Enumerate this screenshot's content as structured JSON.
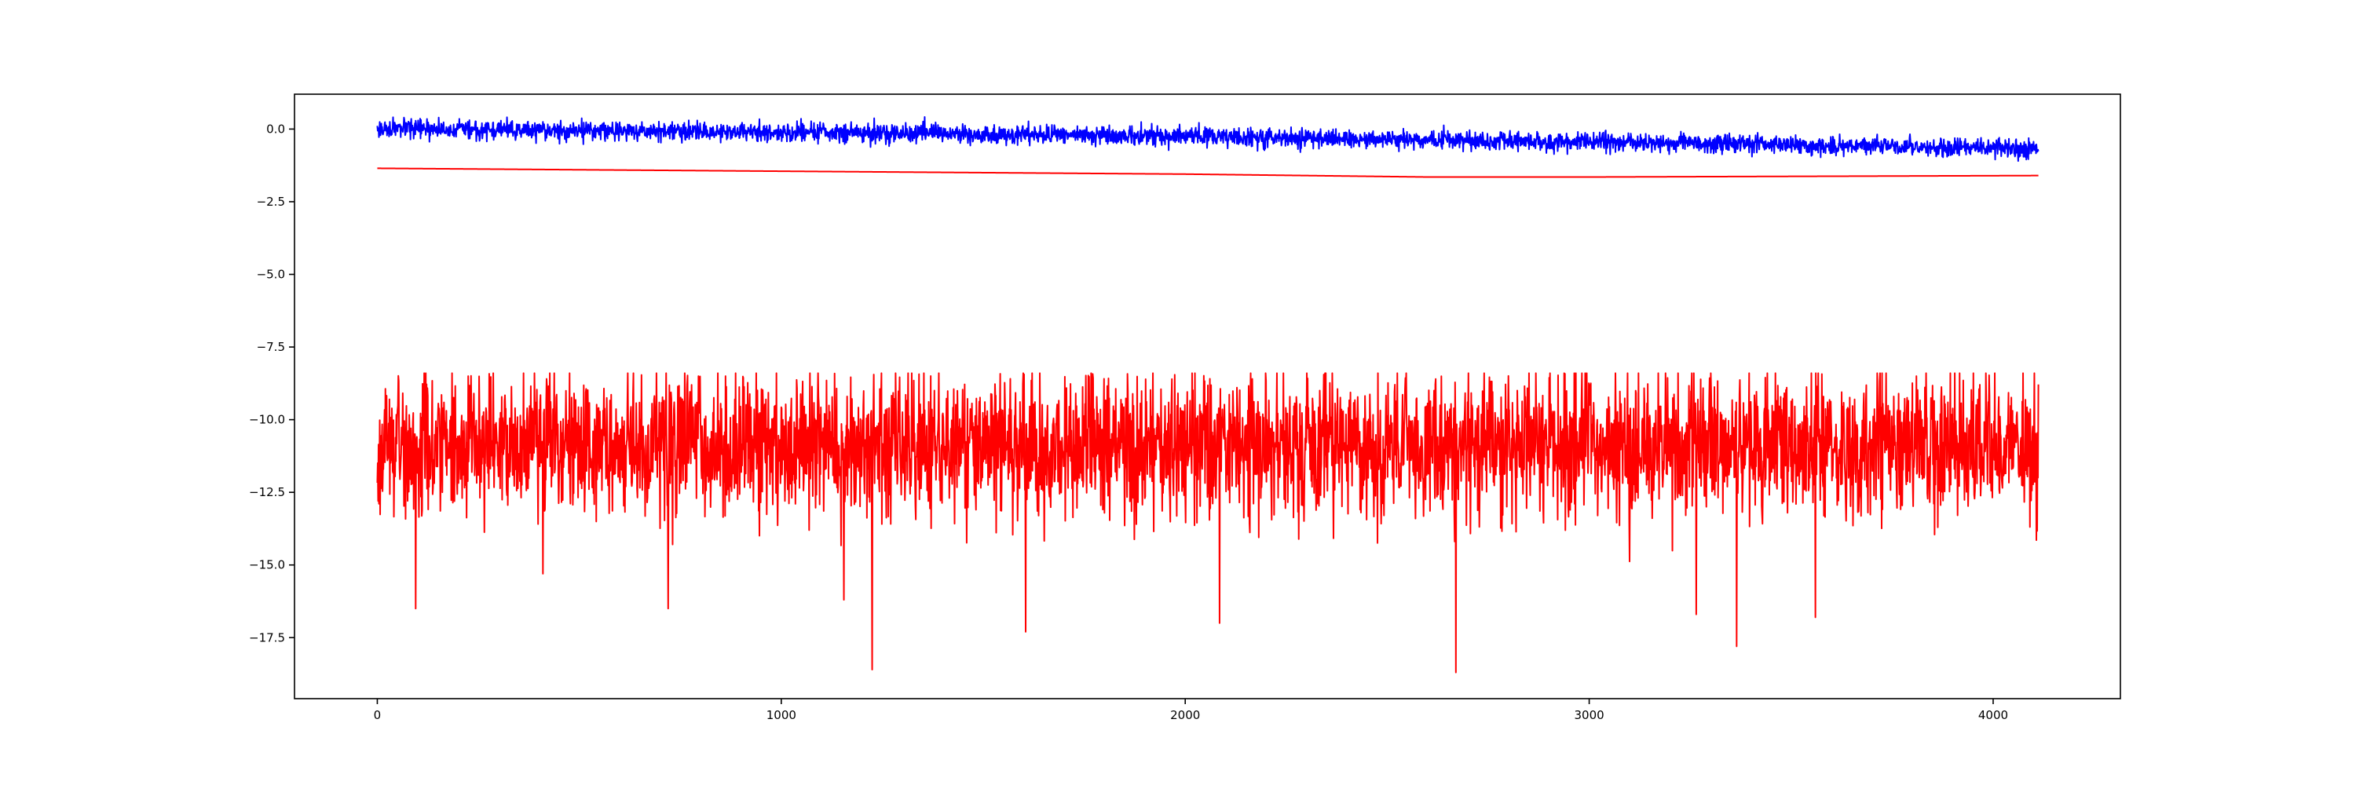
{
  "figure": {
    "background": "#ffffff"
  },
  "chart_data": {
    "type": "line",
    "title": "",
    "xlabel": "",
    "ylabel": "",
    "xlim": [
      -205,
      4315
    ],
    "ylim": [
      -19.6,
      1.2
    ],
    "x_ticks": [
      0,
      1000,
      2000,
      3000,
      4000
    ],
    "x_tick_labels": [
      "0",
      "1000",
      "2000",
      "3000",
      "4000"
    ],
    "y_ticks": [
      0.0,
      -2.5,
      -5.0,
      -7.5,
      -10.0,
      -12.5,
      -15.0,
      -17.5
    ],
    "y_tick_labels": [
      "0.0",
      "−2.5",
      "−5.0",
      "−7.5",
      "−10.0",
      "−12.5",
      "−15.0",
      "−17.5"
    ],
    "grid": false,
    "legend": "none",
    "n_points": 4113,
    "series": [
      {
        "color": "#0000ff",
        "description": "noisy signal drifting downward",
        "anchors": {
          "x": [
            0,
            1000,
            2000,
            3000,
            4000,
            4112
          ],
          "y": [
            0.0,
            -0.1,
            -0.25,
            -0.45,
            -0.65,
            -0.7
          ]
        },
        "noise_amplitude": 0.28,
        "notable_points": []
      },
      {
        "color": "#ff0000",
        "description": "smooth line",
        "anchors": {
          "x": [
            0,
            1000,
            2000,
            2600,
            3000,
            4112
          ],
          "y": [
            -1.35,
            -1.45,
            -1.55,
            -1.65,
            -1.65,
            -1.6
          ]
        },
        "noise_amplitude": 0,
        "notable_points": []
      },
      {
        "color": "#ff0000",
        "description": "noisy signal fluctuating around -10.9",
        "anchors": {
          "x": [
            0,
            4112
          ],
          "y": [
            -10.9,
            -10.9
          ]
        },
        "range": [
          -18.7,
          -8.4
        ],
        "noise_amplitude": 2.2,
        "notable_points": [
          {
            "x": 95,
            "y": -16.5
          },
          {
            "x": 410,
            "y": -15.3
          },
          {
            "x": 720,
            "y": -16.5
          },
          {
            "x": 1155,
            "y": -16.2
          },
          {
            "x": 1225,
            "y": -18.6
          },
          {
            "x": 1605,
            "y": -17.3
          },
          {
            "x": 2085,
            "y": -17.0
          },
          {
            "x": 2670,
            "y": -18.7
          },
          {
            "x": 3265,
            "y": -16.7
          },
          {
            "x": 3365,
            "y": -17.8
          },
          {
            "x": 3560,
            "y": -16.8
          },
          {
            "x": 225,
            "y": -8.5
          },
          {
            "x": 795,
            "y": -8.5
          },
          {
            "x": 2620,
            "y": -8.6
          },
          {
            "x": 2740,
            "y": -8.4
          },
          {
            "x": 3810,
            "y": -8.5
          }
        ]
      }
    ]
  }
}
